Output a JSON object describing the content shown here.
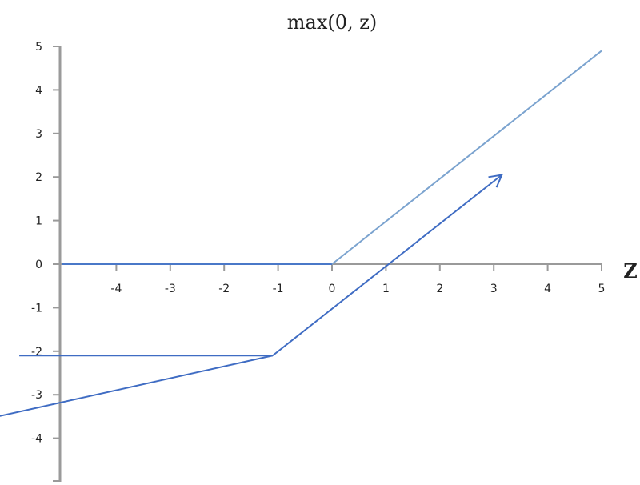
{
  "chart_data": {
    "type": "line",
    "title": "max(0, z)",
    "xlabel": "Z",
    "ylabel": "",
    "xlim": [
      -5,
      5
    ],
    "ylim": [
      -5,
      5
    ],
    "x_ticks": [
      -4,
      -3,
      -2,
      -1,
      0,
      1,
      2,
      3,
      4,
      5
    ],
    "y_ticks": [
      5,
      4,
      3,
      2,
      1,
      0,
      -1,
      -2,
      -3,
      -4
    ],
    "series": [
      {
        "points": [
          [
            -5,
            0
          ],
          [
            0,
            0
          ]
        ],
        "color": "#4a78c8"
      },
      {
        "points": [
          [
            0,
            0
          ],
          [
            5,
            4.9
          ]
        ],
        "color": "#7ba3cf"
      }
    ],
    "annotations": [
      {
        "type": "line",
        "points": [
          [
            -5.8,
            -2.1
          ],
          [
            -1.1,
            -2.1
          ]
        ],
        "color": "#3f6cc3"
      },
      {
        "type": "line",
        "points": [
          [
            -6.2,
            -3.5
          ],
          [
            -1.1,
            -2.1
          ]
        ],
        "color": "#3f6cc3"
      },
      {
        "type": "arrow",
        "points": [
          [
            -1.1,
            -2.1
          ],
          [
            3.15,
            2.05
          ]
        ],
        "color": "#3f6cc3"
      }
    ]
  }
}
